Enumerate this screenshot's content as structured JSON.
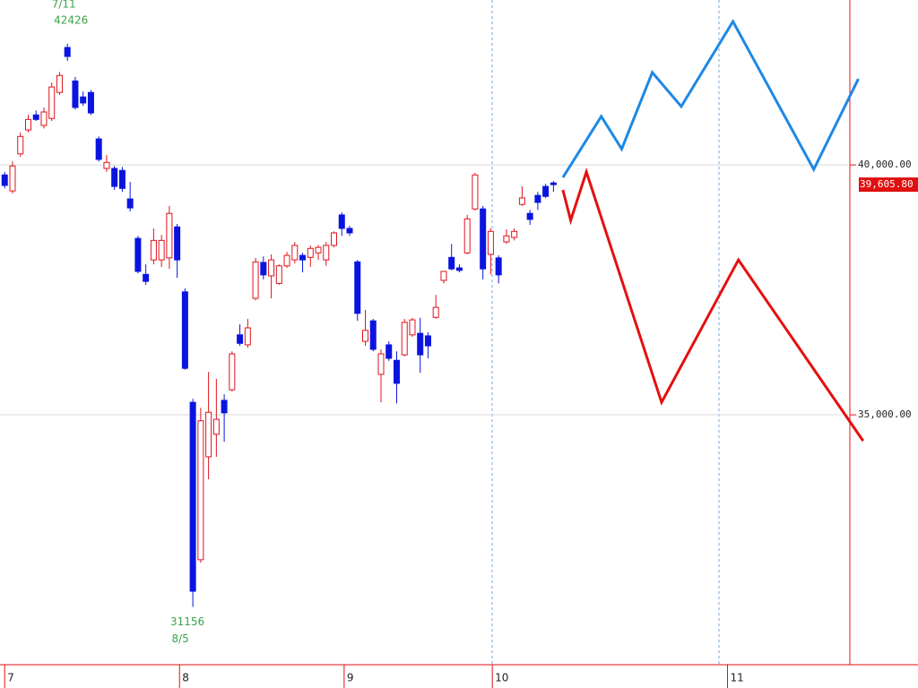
{
  "chart_data": {
    "type": "candlestick",
    "open": [
      39800,
      39480,
      40220,
      40700,
      41000,
      40790,
      40930,
      41450,
      42350,
      41680,
      41360,
      41450,
      40520,
      39930,
      39930,
      39890,
      39320,
      38530,
      37810,
      38100,
      38100,
      38140,
      38760,
      37460,
      35250,
      32100,
      34160,
      34610,
      35290,
      35500,
      36600,
      36400,
      37330,
      38050,
      37780,
      37630,
      37980,
      38100,
      38190,
      38150,
      38240,
      38100,
      38390,
      39000,
      38730,
      38060,
      36470,
      36880,
      35810,
      36400,
      36090,
      36200,
      36600,
      36630,
      36580,
      36950,
      37690,
      38150,
      37940,
      38240,
      39120,
      39120,
      38210,
      38140,
      38460,
      38550,
      39210,
      39030,
      39390,
      39570,
      39640
    ],
    "high": [
      39860,
      40070,
      40650,
      41000,
      41090,
      41150,
      41650,
      41860,
      42426,
      41760,
      41470,
      41500,
      40570,
      40200,
      39980,
      39960,
      39660,
      38580,
      38010,
      38730,
      38600,
      39180,
      38820,
      37530,
      35320,
      35140,
      35860,
      35720,
      35410,
      36270,
      36810,
      36920,
      38140,
      38170,
      38210,
      38010,
      38260,
      38460,
      38240,
      38390,
      38400,
      38460,
      38670,
      39050,
      38780,
      38100,
      37100,
      36920,
      36310,
      36470,
      36270,
      36920,
      36940,
      36940,
      36650,
      37400,
      37880,
      38420,
      38010,
      39000,
      39840,
      39180,
      38730,
      38190,
      38710,
      38730,
      39570,
      39100,
      39460,
      39620,
      39680
    ],
    "low": [
      39530,
      39430,
      40160,
      40650,
      40880,
      40730,
      40880,
      41400,
      42080,
      41110,
      41180,
      41000,
      40070,
      39860,
      39500,
      39460,
      39070,
      37830,
      37600,
      38010,
      37960,
      37920,
      37740,
      35900,
      31156,
      32040,
      33710,
      34160,
      34460,
      35470,
      36380,
      36340,
      37290,
      37710,
      37330,
      37600,
      37940,
      38030,
      37850,
      37960,
      38100,
      37980,
      38350,
      38580,
      38580,
      36880,
      36380,
      36270,
      35250,
      36080,
      35230,
      36170,
      36560,
      35840,
      36130,
      36920,
      37630,
      37890,
      37850,
      38210,
      39090,
      37710,
      37810,
      37630,
      38420,
      38490,
      39180,
      38800,
      39100,
      39340,
      39460
    ],
    "close": [
      39590,
      39980,
      40570,
      40910,
      40910,
      41060,
      41560,
      41790,
      42170,
      41150,
      41240,
      41040,
      40110,
      40050,
      39570,
      39530,
      39140,
      37870,
      37670,
      38490,
      38490,
      39030,
      38100,
      35930,
      31470,
      34880,
      35050,
      34910,
      35040,
      36220,
      36430,
      36740,
      38060,
      37800,
      38100,
      37980,
      38190,
      38390,
      38100,
      38330,
      38350,
      38390,
      38640,
      38730,
      38640,
      37030,
      36690,
      36310,
      36220,
      36130,
      35630,
      36850,
      36900,
      36200,
      36380,
      37150,
      37870,
      37920,
      37890,
      38920,
      39800,
      37920,
      38670,
      37800,
      38580,
      38670,
      39340,
      38910,
      39250,
      39370,
      39605.8
    ],
    "up_color": "#e0141e",
    "down_color": "#0a14e0",
    "xlim": [
      -0.6,
      116.5
    ],
    "xticks": [
      {
        "value": 0,
        "label": "7"
      },
      {
        "value": 22.3,
        "label": "8"
      },
      {
        "value": 43.3,
        "label": "9"
      },
      {
        "value": 62.2,
        "label": "10"
      },
      {
        "value": 92.2,
        "label": "11"
      }
    ],
    "ylim": [
      30000,
      43300
    ],
    "yticks": [
      {
        "value": 40000,
        "label": "40,000.00"
      },
      {
        "value": 35000,
        "label": "35,000.00"
      }
    ],
    "grid": true,
    "last_price": {
      "value": 39605.8,
      "label": "39,605.80"
    },
    "lines": [
      {
        "color": "#1e88e5",
        "x": [
          71.2,
          76.1,
          78.7,
          82.6,
          86.3,
          92.9,
          103.2,
          108.9
        ],
        "values": [
          39750,
          40970,
          40320,
          41850,
          41170,
          42870,
          39910,
          41720
        ]
      },
      {
        "color": "#e41010",
        "x": [
          71.2,
          72.2,
          74.2,
          83.8,
          93.6,
          109.5
        ],
        "values": [
          39500,
          38890,
          39860,
          35250,
          38100,
          34480
        ]
      }
    ],
    "high_label": [
      "7/11",
      "42426"
    ],
    "low_label": [
      "31156",
      "8/5"
    ]
  }
}
